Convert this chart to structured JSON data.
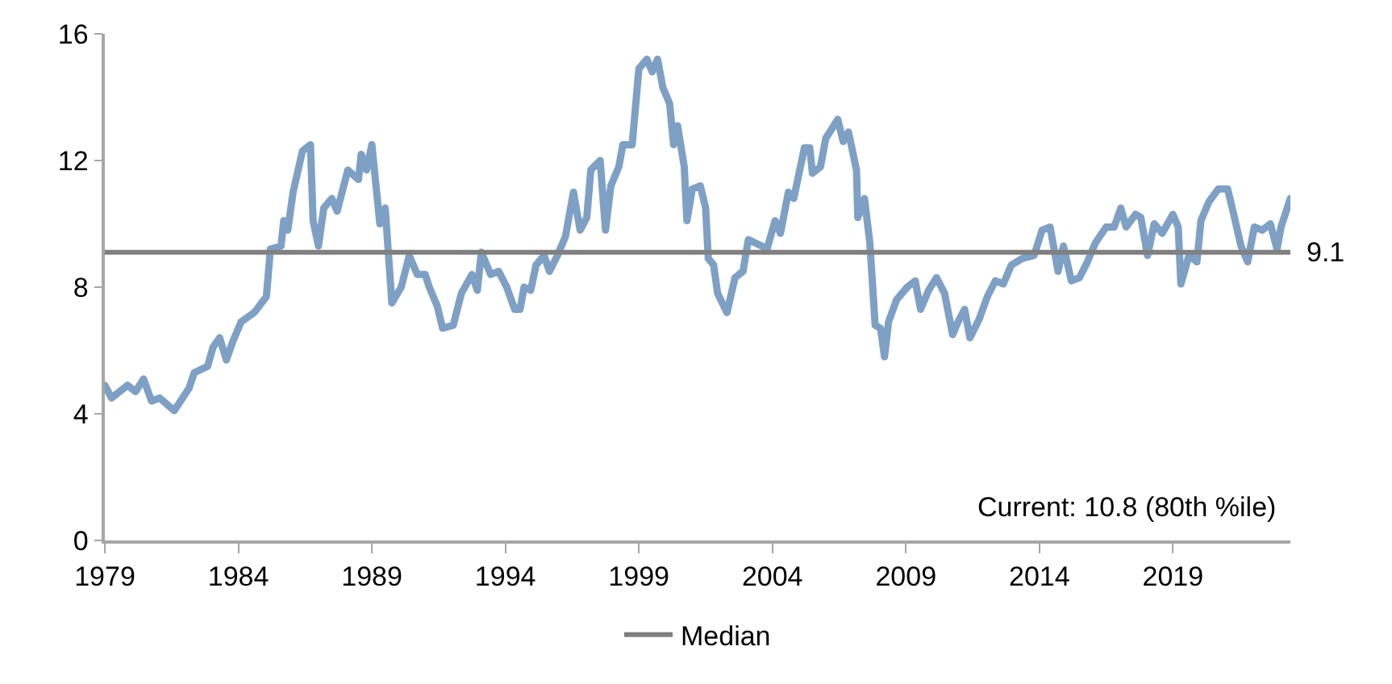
{
  "chart_data": {
    "type": "line",
    "x": [
      1979.0,
      1979.25,
      1979.85,
      1980.15,
      1980.45,
      1980.75,
      1981.05,
      1981.6,
      1982.15,
      1982.35,
      1982.85,
      1983.05,
      1983.3,
      1983.55,
      1983.8,
      1984.1,
      1984.6,
      1985.05,
      1985.2,
      1985.6,
      1985.7,
      1985.85,
      1986.05,
      1986.4,
      1986.7,
      1986.8,
      1987.0,
      1987.2,
      1987.5,
      1987.7,
      1988.1,
      1988.5,
      1988.6,
      1988.8,
      1989.0,
      1989.3,
      1989.5,
      1989.75,
      1990.1,
      1990.4,
      1990.7,
      1991.0,
      1991.15,
      1991.45,
      1991.65,
      1992.05,
      1992.35,
      1992.75,
      1992.95,
      1993.1,
      1993.45,
      1993.75,
      1994.05,
      1994.35,
      1994.55,
      1994.7,
      1994.95,
      1995.15,
      1995.45,
      1995.65,
      1995.95,
      1996.25,
      1996.55,
      1996.8,
      1997.05,
      1997.2,
      1997.55,
      1997.75,
      1997.95,
      1998.25,
      1998.4,
      1998.75,
      1999.0,
      1999.3,
      1999.5,
      1999.7,
      1999.9,
      2000.15,
      2000.3,
      2000.45,
      2000.7,
      2000.8,
      2001.0,
      2001.3,
      2001.5,
      2001.6,
      2001.8,
      2001.95,
      2002.3,
      2002.6,
      2002.9,
      2003.1,
      2003.6,
      2003.8,
      2004.1,
      2004.3,
      2004.6,
      2004.8,
      2005.2,
      2005.4,
      2005.5,
      2005.8,
      2006.0,
      2006.45,
      2006.65,
      2006.85,
      2007.15,
      2007.2,
      2007.45,
      2007.65,
      2007.85,
      2008.05,
      2008.2,
      2008.35,
      2008.65,
      2009.05,
      2009.35,
      2009.55,
      2009.85,
      2010.15,
      2010.45,
      2010.75,
      2010.95,
      2011.2,
      2011.4,
      2011.75,
      2012.05,
      2012.35,
      2012.65,
      2012.95,
      2013.35,
      2013.8,
      2014.1,
      2014.4,
      2014.7,
      2014.9,
      2015.2,
      2015.5,
      2015.8,
      2016.1,
      2016.5,
      2016.8,
      2017.05,
      2017.25,
      2017.6,
      2017.8,
      2018.05,
      2018.3,
      2018.6,
      2019.0,
      2019.2,
      2019.3,
      2019.6,
      2019.9,
      2020.05,
      2020.35,
      2020.7,
      2021.05,
      2021.25,
      2021.55,
      2021.8,
      2022.05,
      2022.35,
      2022.65,
      2022.9,
      2023.05,
      2023.4
    ],
    "series": [
      {
        "color": "#7fa0c5",
        "values": [
          4.9,
          4.5,
          4.9,
          4.7,
          5.1,
          4.4,
          4.5,
          4.1,
          4.8,
          5.3,
          5.5,
          6.1,
          6.4,
          5.7,
          6.3,
          6.9,
          7.2,
          7.7,
          9.2,
          9.3,
          10.1,
          9.8,
          11.0,
          12.3,
          12.5,
          10.1,
          9.3,
          10.5,
          10.8,
          10.4,
          11.7,
          11.4,
          12.2,
          11.7,
          12.5,
          10.0,
          10.5,
          7.5,
          8.0,
          9.0,
          8.4,
          8.4,
          8.0,
          7.4,
          6.7,
          6.8,
          7.8,
          8.4,
          7.9,
          9.1,
          8.4,
          8.5,
          8.0,
          7.3,
          7.3,
          8.0,
          7.9,
          8.7,
          9.0,
          8.5,
          9.0,
          9.6,
          11.0,
          9.8,
          10.2,
          11.7,
          12.0,
          9.8,
          11.2,
          11.8,
          12.5,
          12.5,
          14.9,
          15.2,
          14.8,
          15.2,
          14.3,
          13.8,
          12.5,
          13.1,
          11.8,
          10.1,
          11.1,
          11.2,
          10.5,
          8.9,
          8.7,
          7.8,
          7.2,
          8.3,
          8.5,
          9.5,
          9.3,
          9.2,
          10.1,
          9.7,
          11.0,
          10.8,
          12.4,
          12.4,
          11.6,
          11.8,
          12.7,
          13.3,
          12.6,
          12.9,
          11.7,
          10.2,
          10.8,
          9.4,
          6.8,
          6.7,
          5.8,
          6.9,
          7.6,
          8.0,
          8.2,
          7.3,
          7.9,
          8.3,
          7.8,
          6.5,
          6.9,
          7.3,
          6.4,
          7.0,
          7.7,
          8.2,
          8.1,
          8.7,
          8.9,
          9.0,
          9.8,
          9.9,
          8.5,
          9.3,
          8.2,
          8.3,
          8.8,
          9.4,
          9.9,
          9.9,
          10.5,
          9.9,
          10.3,
          10.2,
          9.0,
          10.0,
          9.7,
          10.3,
          9.9,
          8.1,
          9.0,
          8.8,
          10.1,
          10.7,
          11.1,
          11.1,
          10.4,
          9.3,
          8.8,
          9.9,
          9.8,
          10.0,
          9.2,
          9.9,
          10.8
        ]
      },
      {
        "name": "Median",
        "color": "#808080",
        "x": [
          1979.0,
          2023.4
        ],
        "values": [
          9.1,
          9.1
        ]
      }
    ],
    "annotations": [
      {
        "text": "9.1",
        "x": 2023.4,
        "y": 9.1
      },
      "Current: 10.8 (80th %ile)"
    ],
    "xlim": [
      1979.0,
      2023.4
    ],
    "xticks": [
      1979,
      1984,
      1989,
      1994,
      1999,
      2004,
      2009,
      2014,
      2019
    ],
    "ylim": [
      0,
      16
    ],
    "yticks": [
      0,
      4,
      8,
      12,
      16
    ],
    "legend": "bottom",
    "marker": "none",
    "line_style": "solid"
  }
}
